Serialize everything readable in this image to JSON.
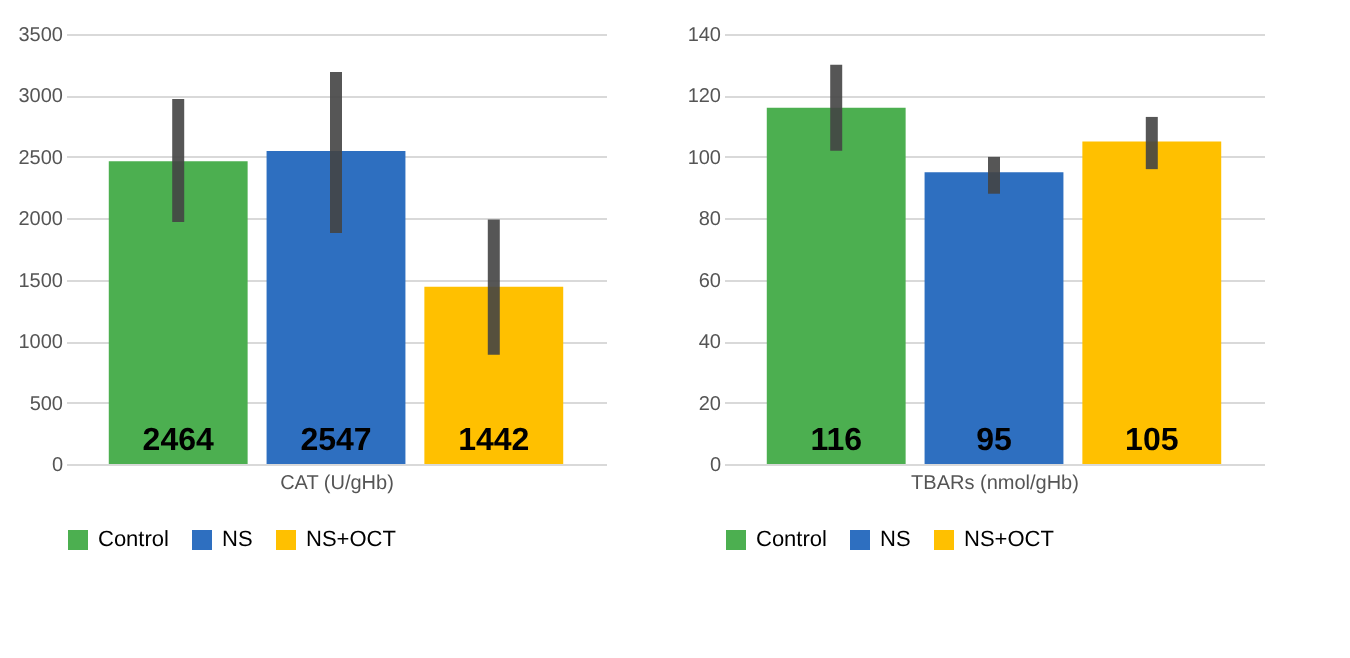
{
  "chart_data": [
    {
      "type": "bar",
      "xlabel": "CAT (U/gHb)",
      "categories": [
        null
      ],
      "series": [
        {
          "name": "Control",
          "color": "#4caf50",
          "values": [
            2464
          ],
          "errors": [
            [
              1970,
              2970
            ]
          ]
        },
        {
          "name": "NS",
          "color": "#2e6fc0",
          "values": [
            2547
          ],
          "errors": [
            [
              1880,
              3190
            ]
          ]
        },
        {
          "name": "NS+OCT",
          "color": "#ffc000",
          "values": [
            1442
          ],
          "errors": [
            [
              890,
              1990
            ]
          ]
        }
      ],
      "ylim": [
        0,
        3500
      ],
      "yticks": [
        0,
        500,
        1000,
        1500,
        2000,
        2500,
        3000,
        3500
      ],
      "grid": "y",
      "legend": "bottom",
      "tick_labels": "y",
      "data_labels": true
    },
    {
      "type": "bar",
      "xlabel": "TBARs (nmol/gHb)",
      "categories": [
        null
      ],
      "series": [
        {
          "name": "Control",
          "color": "#4caf50",
          "values": [
            116
          ],
          "errors": [
            [
              102,
              130
            ]
          ]
        },
        {
          "name": "NS",
          "color": "#2e6fc0",
          "values": [
            95
          ],
          "errors": [
            [
              88,
              100
            ]
          ]
        },
        {
          "name": "NS+OCT",
          "color": "#ffc000",
          "values": [
            105
          ],
          "errors": [
            [
              96,
              113
            ]
          ]
        }
      ],
      "ylim": [
        0,
        140
      ],
      "yticks": [
        0,
        20,
        40,
        60,
        80,
        100,
        120,
        140
      ],
      "grid": "y",
      "legend": "bottom",
      "tick_labels": "y",
      "data_labels": true
    }
  ]
}
